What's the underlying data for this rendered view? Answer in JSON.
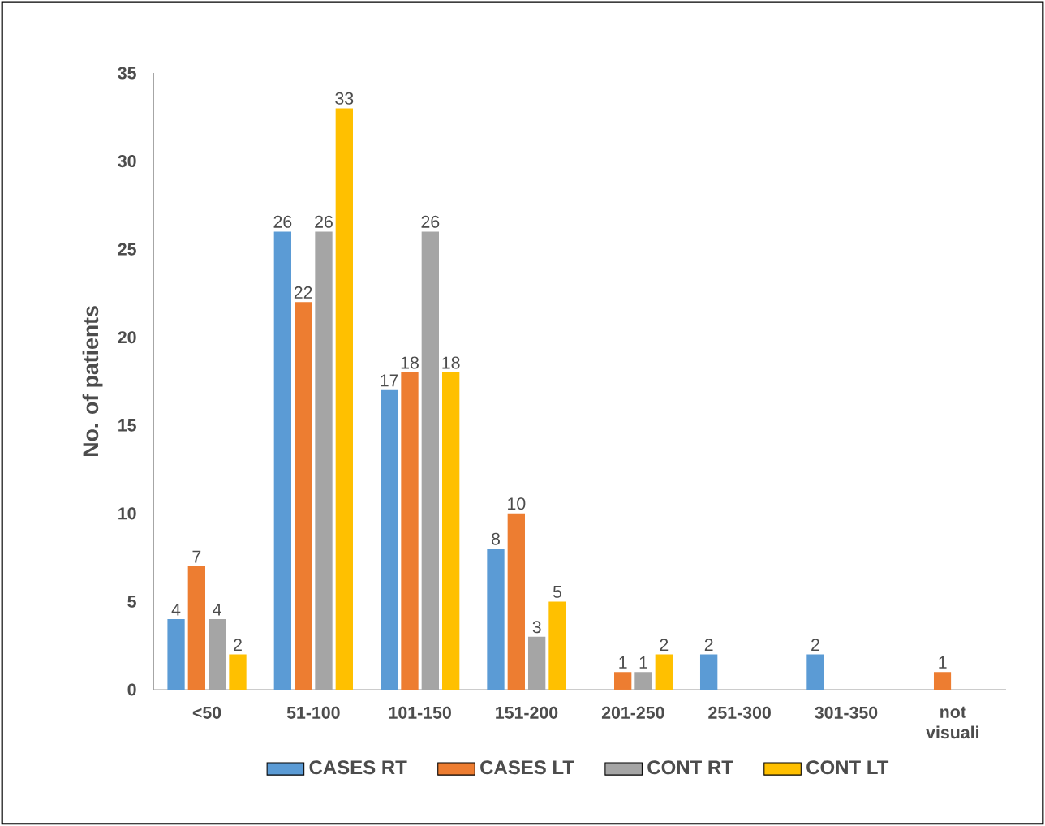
{
  "chart_data": {
    "type": "bar",
    "ylabel": "No. of patients",
    "categories": [
      "<50",
      "51-100",
      "101-150",
      "151-200",
      "201-250",
      "251-300",
      "301-350",
      "not visuali"
    ],
    "series": [
      {
        "name": "CASES RT",
        "color": "#5b9bd5",
        "values": [
          4,
          26,
          17,
          8,
          null,
          2,
          2,
          null
        ]
      },
      {
        "name": "CASES LT",
        "color": "#ed7d31",
        "values": [
          7,
          22,
          18,
          10,
          1,
          null,
          null,
          1
        ]
      },
      {
        "name": "CONT RT",
        "color": "#a5a5a5",
        "values": [
          4,
          26,
          26,
          3,
          1,
          null,
          null,
          null
        ]
      },
      {
        "name": "CONT LT",
        "color": "#ffc000",
        "values": [
          2,
          33,
          18,
          5,
          2,
          null,
          null,
          null
        ]
      }
    ],
    "ylim": [
      0,
      35
    ],
    "yticks": [
      0,
      5,
      10,
      15,
      20,
      25,
      30,
      35
    ],
    "data_labels": true,
    "grid": false,
    "legend": "bottom"
  }
}
